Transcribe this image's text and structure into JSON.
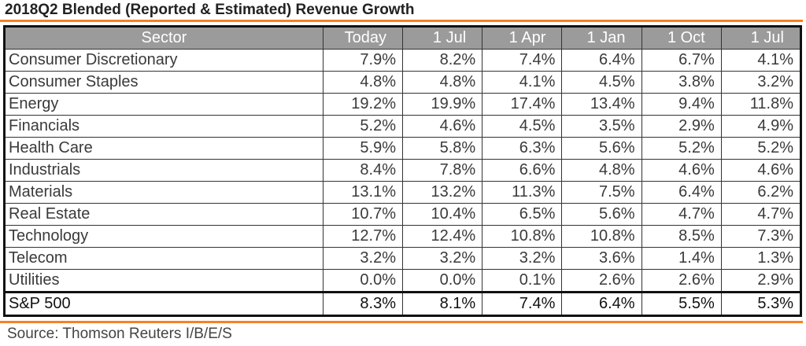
{
  "title": "2018Q2 Blended (Reported & Estimated) Revenue Growth",
  "columns": [
    "Sector",
    "Today",
    "1 Jul",
    "1 Apr",
    "1 Jan",
    "1 Oct",
    "1 Jul"
  ],
  "rows": [
    {
      "sector": "Consumer Discretionary",
      "values": [
        "7.9%",
        "8.2%",
        "7.4%",
        "6.4%",
        "6.7%",
        "4.1%"
      ]
    },
    {
      "sector": "Consumer Staples",
      "values": [
        "4.8%",
        "4.8%",
        "4.1%",
        "4.5%",
        "3.8%",
        "3.2%"
      ]
    },
    {
      "sector": "Energy",
      "values": [
        "19.2%",
        "19.9%",
        "17.4%",
        "13.4%",
        "9.4%",
        "11.8%"
      ]
    },
    {
      "sector": "Financials",
      "values": [
        "5.2%",
        "4.6%",
        "4.5%",
        "3.5%",
        "2.9%",
        "4.9%"
      ]
    },
    {
      "sector": "Health Care",
      "values": [
        "5.9%",
        "5.8%",
        "6.3%",
        "5.6%",
        "5.2%",
        "5.2%"
      ]
    },
    {
      "sector": "Industrials",
      "values": [
        "8.4%",
        "7.8%",
        "6.6%",
        "4.8%",
        "4.6%",
        "4.6%"
      ]
    },
    {
      "sector": "Materials",
      "values": [
        "13.1%",
        "13.2%",
        "11.3%",
        "7.5%",
        "6.4%",
        "6.2%"
      ]
    },
    {
      "sector": "Real Estate",
      "values": [
        "10.7%",
        "10.4%",
        "6.5%",
        "5.6%",
        "4.7%",
        "4.7%"
      ]
    },
    {
      "sector": "Technology",
      "values": [
        "12.7%",
        "12.4%",
        "10.8%",
        "10.8%",
        "8.5%",
        "7.3%"
      ]
    },
    {
      "sector": "Telecom",
      "values": [
        "3.2%",
        "3.2%",
        "3.2%",
        "3.6%",
        "1.4%",
        "1.3%"
      ]
    },
    {
      "sector": "Utilities",
      "values": [
        "0.0%",
        "0.0%",
        "0.1%",
        "2.6%",
        "2.6%",
        "2.9%"
      ]
    }
  ],
  "total": {
    "sector": "S&P 500",
    "values": [
      "8.3%",
      "8.1%",
      "7.4%",
      "6.4%",
      "5.5%",
      "5.3%"
    ]
  },
  "source": "Source: Thomson Reuters I/B/E/S",
  "colors": {
    "accent_rule": "#f58220",
    "header_bg": "#9b9b9b",
    "header_text": "#ffffff",
    "border": "#111111"
  }
}
